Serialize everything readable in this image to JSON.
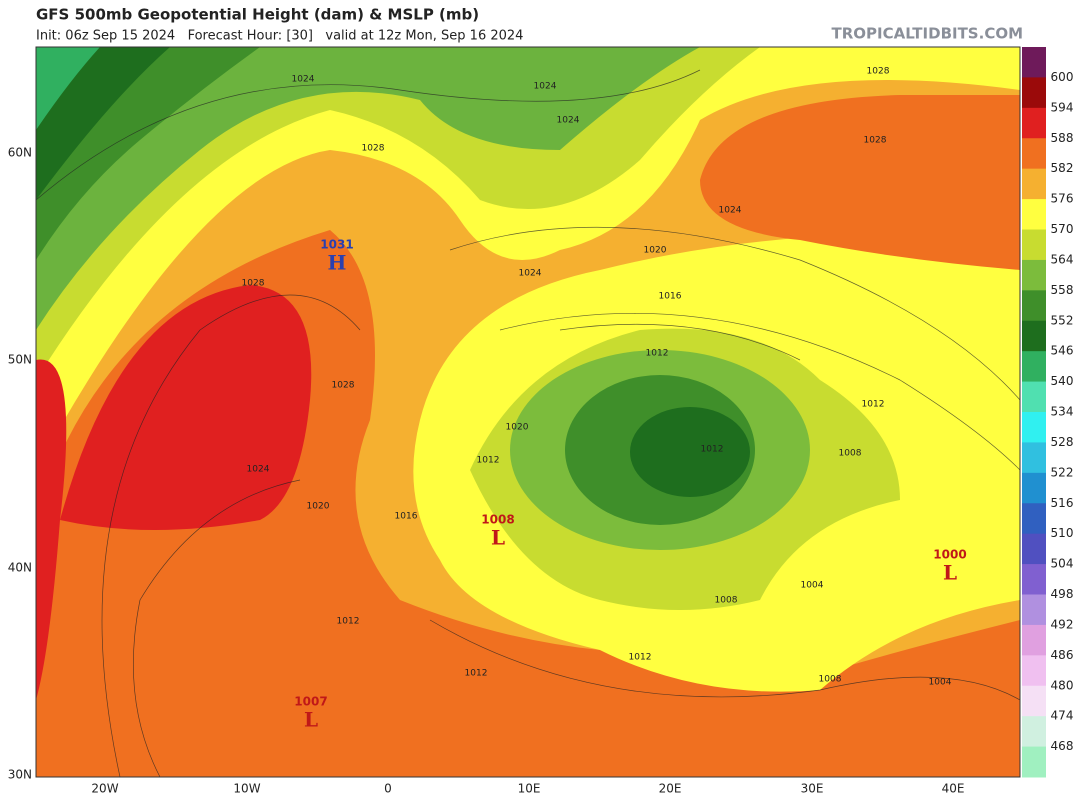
{
  "header": {
    "title": "GFS 500mb Geopotential Height (dam) & MSLP (mb)",
    "subtitle": "Init: 06z Sep 15 2024   Forecast Hour: [30]   valid at 12z Mon, Sep 16 2024",
    "source": "TROPICALTIDBITS.COM"
  },
  "axes": {
    "lat_labels": [
      "60N",
      "50N",
      "40N",
      "30N"
    ],
    "lon_labels": [
      "20W",
      "10W",
      "0",
      "10E",
      "20E",
      "30E",
      "40E"
    ]
  },
  "colorbar": {
    "levels": [
      600,
      594,
      588,
      582,
      576,
      570,
      564,
      558,
      552,
      546,
      540,
      534,
      528,
      522,
      516,
      510,
      504,
      498,
      492,
      486,
      480,
      474,
      468
    ],
    "colors": [
      "#6e1a5a",
      "#9b0a0a",
      "#e02020",
      "#f07020",
      "#f5b030",
      "#ffff40",
      "#c8dc30",
      "#7cbc3c",
      "#3f8f2a",
      "#1e6e1e",
      "#30b060",
      "#50e0b0",
      "#30f0f0",
      "#30c0e0",
      "#2090d0",
      "#3060c0",
      "#5050c0",
      "#8060d0",
      "#b090e0",
      "#e0a0e0",
      "#f0c0f0",
      "#f5e0f5",
      "#d0f0e0",
      "#a0f0c0"
    ]
  },
  "pressure_centers": [
    {
      "symbol": "H",
      "value": "1031"
    },
    {
      "symbol": "L",
      "value": "1008"
    },
    {
      "symbol": "L",
      "value": "1007"
    },
    {
      "symbol": "L",
      "value": "1000"
    }
  ],
  "isobar_labels": [
    "1024",
    "1024",
    "1024",
    "1028",
    "1028",
    "1028",
    "1024",
    "1020",
    "1024",
    "1016",
    "1012",
    "1028",
    "1028",
    "1012",
    "1020",
    "1012",
    "1008",
    "1012",
    "1024",
    "1020",
    "1016",
    "1004",
    "1008",
    "1012",
    "1012",
    "1012",
    "1008",
    "1004"
  ]
}
